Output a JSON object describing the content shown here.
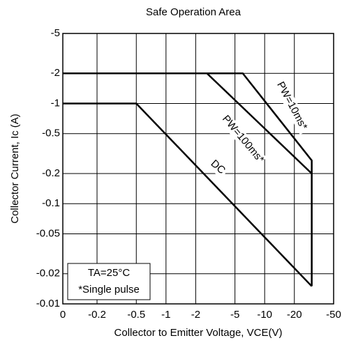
{
  "chart_data": {
    "type": "line",
    "title": "Safe Operation Area",
    "x_label": "Collector to Emitter Voltage, VCE(V)",
    "y_label": "Collector Current, Ic (A)",
    "log_x": true,
    "log_y": true,
    "grid": true,
    "color": "#000000",
    "x_origin_label": "0",
    "xlim": [
      -0.09,
      -50
    ],
    "ylim": [
      -0.01,
      -5
    ],
    "xticks": [
      -0.2,
      -0.5,
      -1,
      -2,
      -5,
      -10,
      -20,
      -50
    ],
    "yticks": [
      -0.01,
      -0.02,
      -0.05,
      -0.1,
      -0.2,
      -0.5,
      -1,
      -2,
      -5
    ],
    "series": [
      {
        "name": "PW=10ms*",
        "x": [
          -0.09,
          -6,
          -30,
          -30
        ],
        "values": [
          -2,
          -2,
          -0.27,
          -0.015
        ]
      },
      {
        "name": "PW=100ms*",
        "x": [
          -0.09,
          -2.6,
          -30
        ],
        "values": [
          -2,
          -2,
          -0.2
        ]
      },
      {
        "name": "DC",
        "x": [
          -0.09,
          -0.5,
          -30
        ],
        "values": [
          -1,
          -1,
          -0.015
        ]
      }
    ],
    "annotations": [
      "TA=25°C",
      "*Single pulse"
    ]
  }
}
